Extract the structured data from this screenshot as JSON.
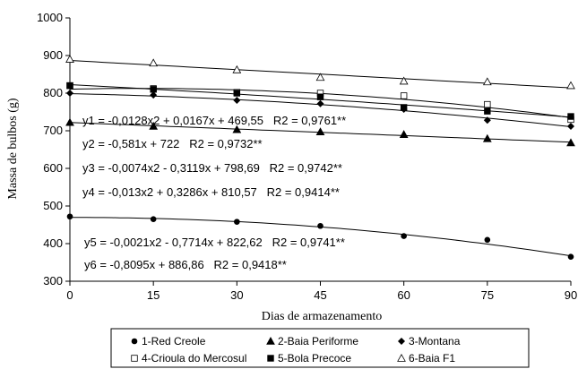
{
  "chart_data": {
    "type": "scatter",
    "xlabel": "Dias de armazenamento",
    "ylabel": "Massa de bulbos (g)",
    "xlim": [
      0,
      90
    ],
    "ylim": [
      300,
      1000
    ],
    "x_ticks": [
      "0",
      "15",
      "30",
      "45",
      "60",
      "75",
      "90"
    ],
    "y_ticks": [
      "300",
      "400",
      "500",
      "600",
      "700",
      "800",
      "900",
      "1000"
    ],
    "grid": false,
    "legend_position": "bottom",
    "x": [
      0,
      15,
      30,
      45,
      60,
      75,
      90
    ],
    "series": [
      {
        "name": "1-Red Creole",
        "marker": "circle-filled",
        "values": [
          472,
          465,
          458,
          447,
          420,
          410,
          365
        ]
      },
      {
        "name": "2-Baia Periforme",
        "marker": "triangle-filled",
        "values": [
          722,
          712,
          703,
          697,
          690,
          679,
          668
        ]
      },
      {
        "name": "3-Montana",
        "marker": "diamond-filled",
        "values": [
          800,
          795,
          781,
          772,
          757,
          728,
          712
        ]
      },
      {
        "name": "4-Crioula do Mercosul",
        "marker": "square-open",
        "values": [
          820,
          812,
          802,
          800,
          793,
          770,
          730
        ]
      },
      {
        "name": "5-Bola Precoce",
        "marker": "square-filled",
        "values": [
          820,
          810,
          800,
          790,
          762,
          752,
          738
        ]
      },
      {
        "name": "6-Baia F1",
        "marker": "triangle-open",
        "values": [
          890,
          880,
          862,
          842,
          832,
          830,
          820
        ]
      }
    ],
    "equations": [
      "y1 = -0,0128x2 + 0,0167x + 469,55   R2 = 0,9761**",
      "y2 = -0,581x + 722   R2 = 0,9732**",
      "y3 = -0,0074x2 - 0,3119x + 798,69   R2 = 0,9742**",
      "y4 = -0,013x2 + 0,3286x + 810,57   R2 = 0,9414**",
      "y5 = -0,0021x2 - 0,7714x + 822,62   R2 = 0,9741**",
      "y6 = -0,8095x + 886,86   R2 = 0,9418**"
    ],
    "fits": [
      {
        "a": -0.0128,
        "b": 0.0167,
        "c": 469.55
      },
      {
        "a": 0,
        "b": -0.581,
        "c": 722
      },
      {
        "a": -0.0074,
        "b": -0.3119,
        "c": 798.69
      },
      {
        "a": -0.013,
        "b": 0.3286,
        "c": 810.57
      },
      {
        "a": -0.0021,
        "b": -0.7714,
        "c": 822.62
      },
      {
        "a": 0,
        "b": -0.8095,
        "c": 886.86
      }
    ]
  }
}
